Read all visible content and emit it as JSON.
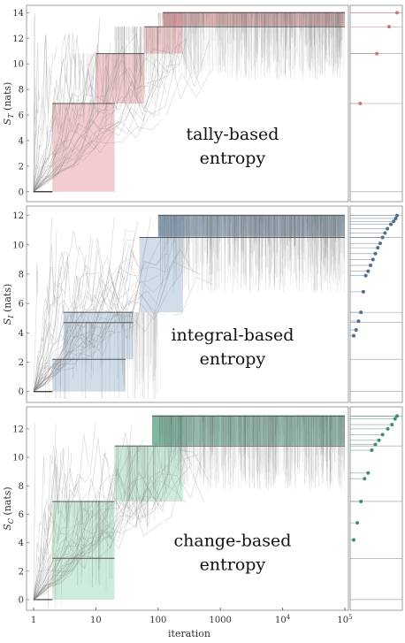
{
  "chart_data": [
    {
      "type": "line",
      "annotation": [
        "tally-based",
        "entropy"
      ],
      "ylabel": "S_T (nats)",
      "ylabel_main": "S",
      "ylabel_sub": "T",
      "ylabel_unit": "(nats)",
      "xscale": "log",
      "xlim": [
        1,
        100000
      ],
      "ylim": [
        -0.5,
        14.3
      ],
      "yticks": [
        0,
        2,
        4,
        6,
        8,
        10,
        12,
        14
      ],
      "color": "#c97a7a",
      "fill_color": "#e8a3a8",
      "plateaus": [
        {
          "y": 0,
          "x": [
            1,
            2
          ]
        },
        {
          "y": 6.9,
          "x": [
            2,
            20
          ]
        },
        {
          "y": 10.8,
          "x": [
            10,
            60
          ]
        },
        {
          "y": 12.9,
          "x": [
            60,
            100000
          ]
        },
        {
          "y": 14.0,
          "x": [
            120,
            100000
          ]
        }
      ],
      "side_points": [
        14.0,
        12.9,
        10.8,
        6.9
      ]
    },
    {
      "type": "line",
      "annotation": [
        "integral-based",
        "entropy"
      ],
      "ylabel": "S_I (nats)",
      "ylabel_main": "S",
      "ylabel_sub": "I",
      "ylabel_unit": "(nats)",
      "xscale": "log",
      "xlim": [
        1,
        100000
      ],
      "ylim": [
        -0.5,
        12.4
      ],
      "yticks": [
        0,
        2,
        4,
        6,
        8,
        10,
        12
      ],
      "color": "#4f6f8c",
      "fill_color": "#a9c3d9",
      "plateaus": [
        {
          "y": 0,
          "x": [
            1,
            2
          ]
        },
        {
          "y": 2.2,
          "x": [
            2,
            30
          ]
        },
        {
          "y": 4.7,
          "x": [
            3,
            40
          ]
        },
        {
          "y": 5.4,
          "x": [
            3,
            40
          ]
        },
        {
          "y": 10.5,
          "x": [
            50,
            100000
          ]
        },
        {
          "y": 12.0,
          "x": [
            100,
            100000
          ]
        }
      ],
      "side_points": [
        12.0,
        11.8,
        11.6,
        11.4,
        11.1,
        10.8,
        10.5,
        10.1,
        9.8,
        9.4,
        9.0,
        8.6,
        8.2,
        7.9,
        6.8,
        5.4,
        4.8,
        4.2,
        3.8
      ]
    },
    {
      "type": "line",
      "annotation": [
        "change-based",
        "entropy"
      ],
      "ylabel": "S_C (nats)",
      "ylabel_main": "S",
      "ylabel_sub": "C",
      "ylabel_unit": "(nats)",
      "xlabel": "iteration",
      "xscale": "log",
      "xlim": [
        1,
        100000
      ],
      "xticks": [
        "1",
        "10",
        "100",
        "1000",
        "10^4",
        "10^5"
      ],
      "ylim": [
        -0.5,
        13.3
      ],
      "yticks": [
        0,
        2,
        4,
        6,
        8,
        10,
        12
      ],
      "color": "#3f8c6e",
      "fill_color": "#a4dcbf",
      "plateaus": [
        {
          "y": 0,
          "x": [
            1,
            2
          ]
        },
        {
          "y": 2.9,
          "x": [
            2,
            20
          ]
        },
        {
          "y": 6.9,
          "x": [
            2,
            20
          ]
        },
        {
          "y": 10.8,
          "x": [
            20,
            100000
          ]
        },
        {
          "y": 12.9,
          "x": [
            80,
            100000
          ]
        }
      ],
      "side_points": [
        12.9,
        12.7,
        12.3,
        12.0,
        11.6,
        11.2,
        10.9,
        10.5,
        8.9,
        8.5,
        6.9,
        5.4,
        4.2
      ]
    }
  ]
}
